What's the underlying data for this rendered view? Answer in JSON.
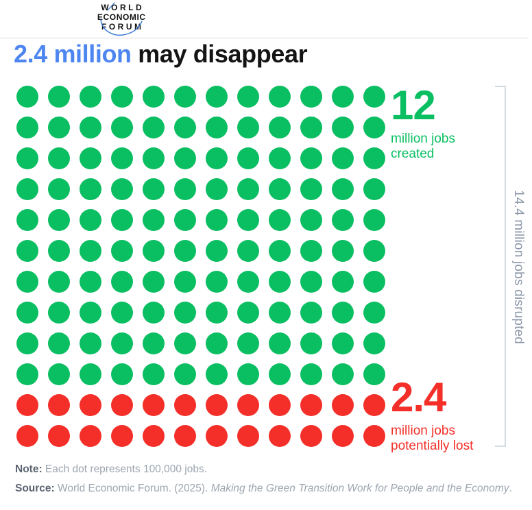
{
  "logo": {
    "lines": [
      "WORLD",
      "ECONOMIC",
      "FORUM"
    ]
  },
  "title": {
    "highlight": "2.4 million",
    "rest": " may disappear"
  },
  "chart_data": {
    "type": "pictogram",
    "title": "2.4 million may disappear",
    "unit_per_dot_jobs": 100000,
    "columns": 12,
    "rows": 12,
    "series": [
      {
        "name": "million jobs created",
        "value": 12,
        "value_label": "12",
        "dots": 120,
        "color": "#0abe62"
      },
      {
        "name": "million jobs potentially lost",
        "value": 2.4,
        "value_label": "2.4",
        "dots": 24,
        "color": "#f42e28"
      }
    ],
    "total": {
      "value": 14.4,
      "label": "14.4 million jobs disrupted"
    },
    "legend_position": "right",
    "grid": false
  },
  "labels": {
    "created": {
      "value": "12",
      "line1": "million jobs",
      "line2": "created"
    },
    "lost": {
      "value": "2.4",
      "line1": "million jobs",
      "line2": "potentially lost"
    },
    "side": "14.4 million jobs disrupted"
  },
  "footer": {
    "note_label": "Note:",
    "note_text": " Each dot represents 100,000 jobs.",
    "source_label": "Source:",
    "source_text": " World Economic Forum. (2025). ",
    "source_italic": "Making the Green Transition Work for People and the Economy",
    "source_period": "."
  },
  "colors": {
    "title_highlight": "#4d86f0",
    "created_green": "#0abe62",
    "lost_red": "#f42e28",
    "side_label_gray": "#8c98a9",
    "bracket_gray": "#c7ced8"
  }
}
